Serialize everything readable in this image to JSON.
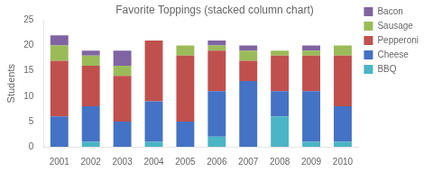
{
  "chart_data": {
    "type": "bar",
    "title": "Favorite Toppings (stacked column chart)",
    "ylabel": "Students",
    "categories": [
      "2001",
      "2002",
      "2003",
      "2004",
      "2005",
      "2006",
      "2007",
      "2008",
      "2009",
      "2010"
    ],
    "series": [
      {
        "name": "BBQ",
        "color": "#4ab5c4",
        "values": [
          0,
          1,
          0,
          1,
          0,
          2,
          0,
          6,
          1,
          1
        ]
      },
      {
        "name": "Cheese",
        "color": "#4472c4",
        "values": [
          6,
          7,
          5,
          8,
          5,
          9,
          13,
          5,
          10,
          7
        ]
      },
      {
        "name": "Pepperoni",
        "color": "#c0504d",
        "values": [
          11,
          8,
          9,
          12,
          13,
          8,
          4,
          7,
          7,
          10
        ]
      },
      {
        "name": "Sausage",
        "color": "#9bbb59",
        "values": [
          3,
          2,
          2,
          0,
          2,
          1,
          2,
          1,
          1,
          2
        ]
      },
      {
        "name": "Bacon",
        "color": "#8064a2",
        "values": [
          2,
          1,
          3,
          0,
          0,
          1,
          1,
          0,
          1,
          0
        ]
      }
    ],
    "ylim": [
      0,
      25
    ],
    "yticks": [
      0,
      5,
      10,
      15,
      20,
      25
    ],
    "stacked": true,
    "grid": false,
    "legend": "right"
  }
}
